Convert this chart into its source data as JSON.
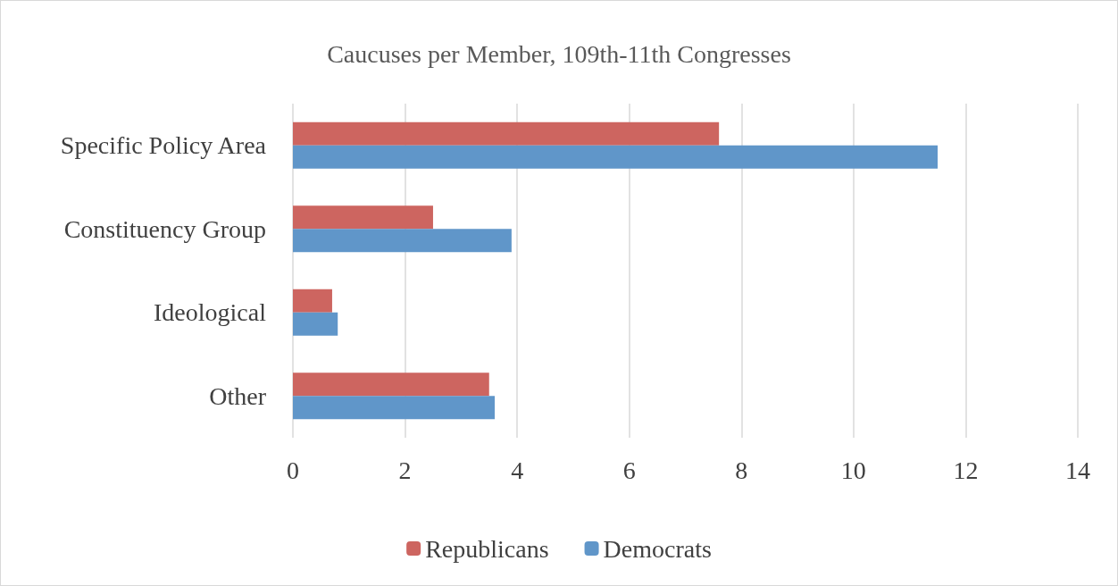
{
  "chart_data": {
    "type": "bar",
    "orientation": "horizontal",
    "title": "Caucuses per Member, 109th-11th Congresses",
    "categories": [
      "Specific Policy Area",
      "Constituency Group",
      "Ideological",
      "Other"
    ],
    "series": [
      {
        "name": "Republicans",
        "color": "#cd6560",
        "values": [
          7.6,
          2.5,
          0.7,
          3.5
        ]
      },
      {
        "name": "Democrats",
        "color": "#6096c9",
        "values": [
          11.5,
          3.9,
          0.8,
          3.6
        ]
      }
    ],
    "xlim": [
      0,
      14
    ],
    "xticks": [
      0,
      2,
      4,
      6,
      8,
      10,
      12,
      14
    ],
    "grid": "x",
    "legend": "bottom"
  }
}
